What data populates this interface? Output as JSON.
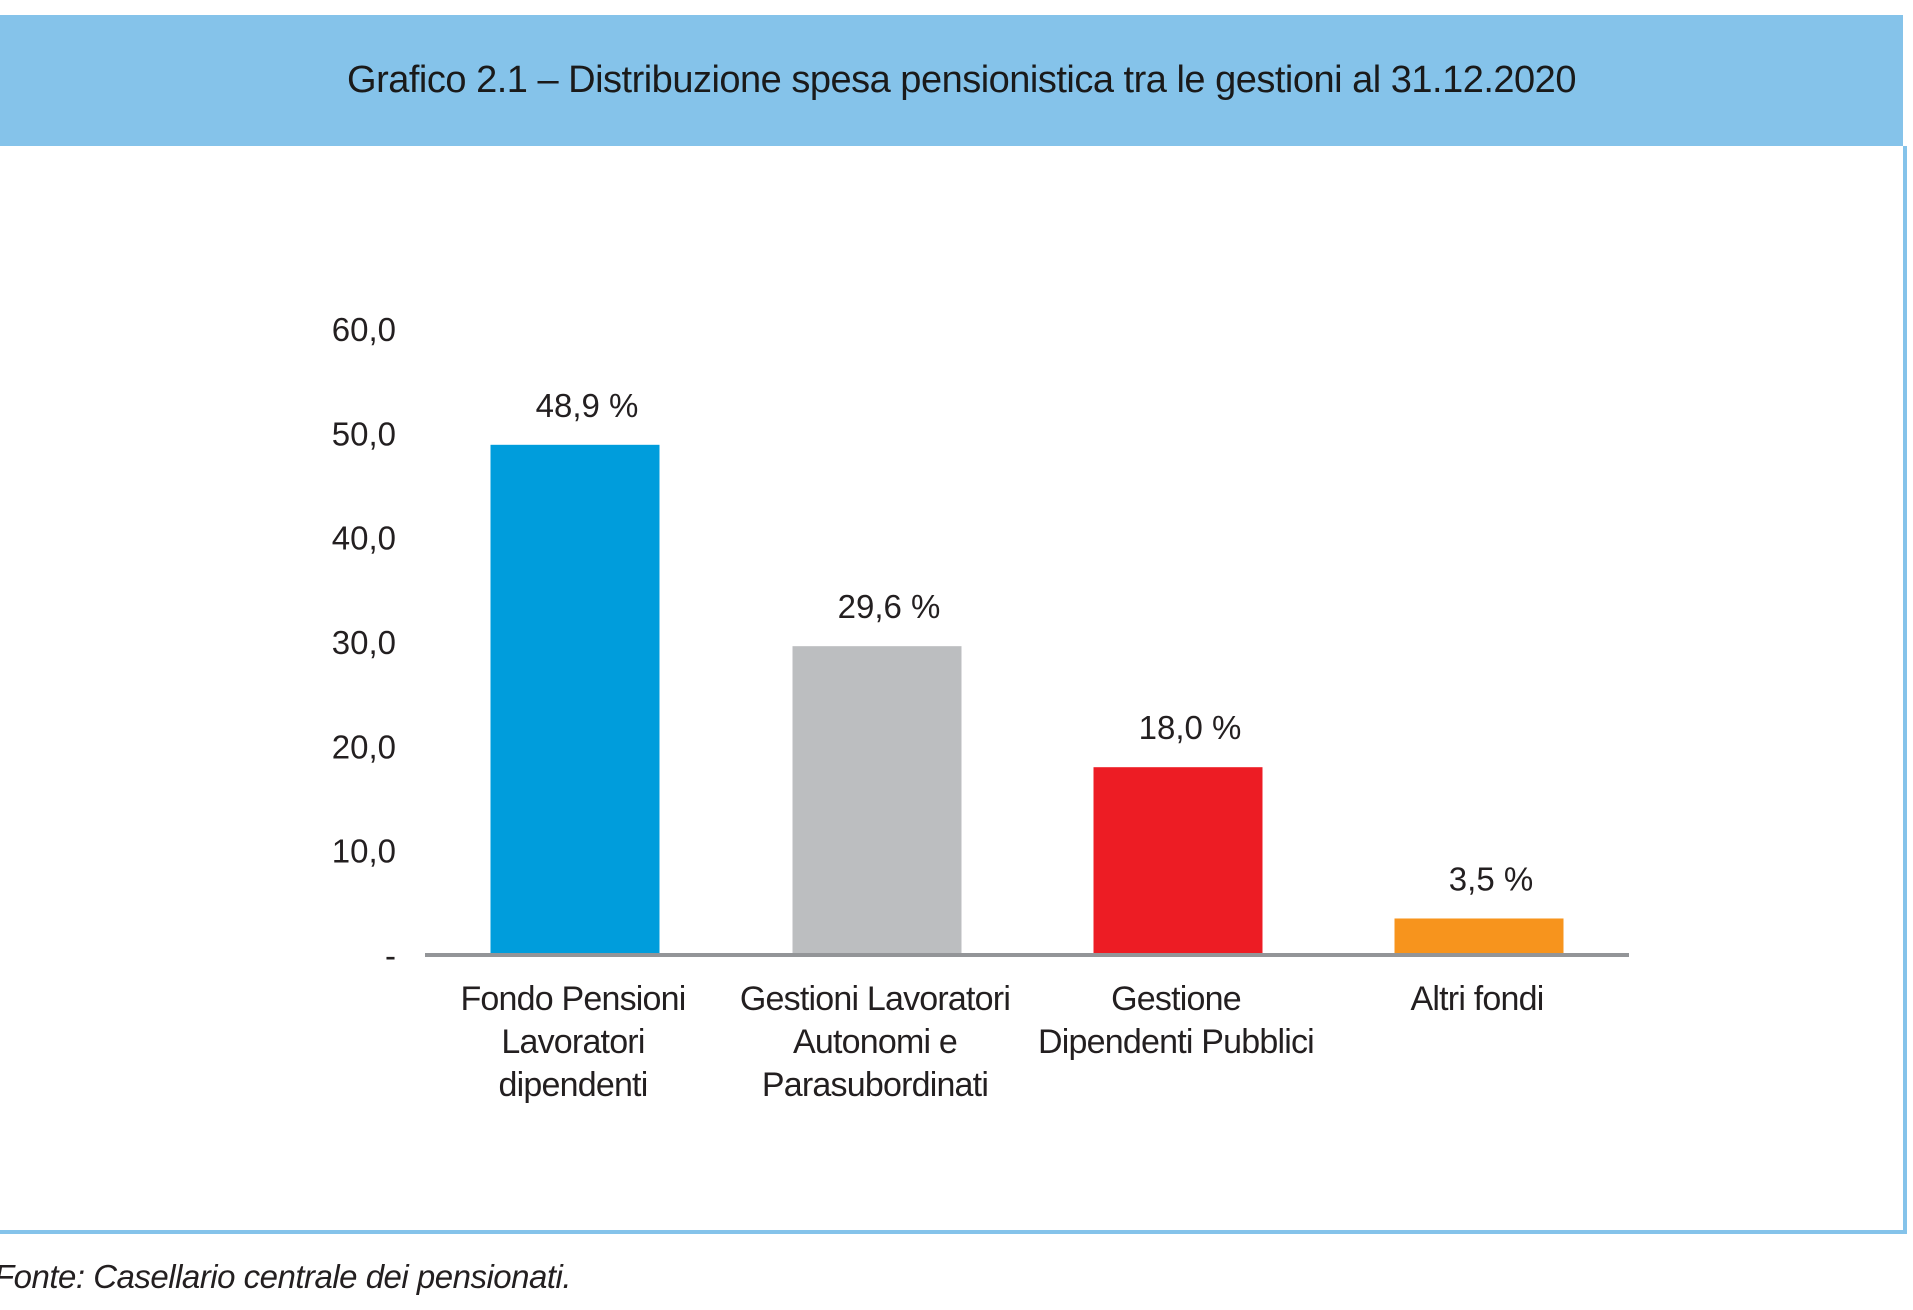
{
  "chart_data": {
    "type": "bar",
    "title": "Grafico 2.1 – Distribuzione spesa pensionistica tra le gestioni al 31.12.2020",
    "categories": [
      [
        "Fondo Pensioni",
        "Lavoratori",
        "dipendenti"
      ],
      [
        "Gestioni Lavoratori",
        "Autonomi e",
        "Parasubordinati"
      ],
      [
        "Gestione",
        "Dipendenti Pubblici"
      ],
      [
        "Altri fondi"
      ]
    ],
    "values": [
      48.9,
      29.6,
      18.0,
      3.5
    ],
    "data_labels": [
      "48,9 %",
      "29,6 %",
      "18,0 %",
      "3,5 %"
    ],
    "colors": [
      "#009ddc",
      "#bcbec0",
      "#ed1c24",
      "#f7941d"
    ],
    "ylim": [
      0,
      60
    ],
    "yticks": [
      0,
      10,
      20,
      30,
      40,
      50,
      60
    ],
    "ytick_labels": [
      "-",
      "10,0",
      "20,0",
      "30,0",
      "40,0",
      "50,0",
      "60,0"
    ],
    "xlabel": "",
    "ylabel": "",
    "grid": false,
    "legend": "none",
    "header_color": "#85c3ea"
  },
  "source": "Fonte: Casellario centrale dei pensionati."
}
